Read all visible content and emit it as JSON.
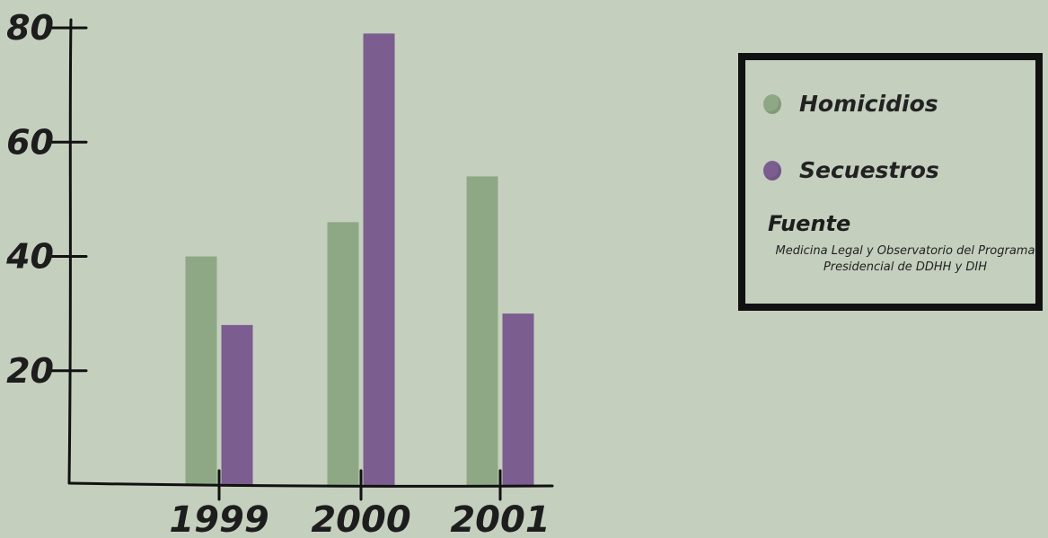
{
  "chart_data": {
    "type": "bar",
    "categories": [
      "1999",
      "2000",
      "2001"
    ],
    "series": [
      {
        "name": "Homicidios",
        "color": "#8ea885",
        "values": [
          40,
          46,
          54
        ]
      },
      {
        "name": "Secuestros",
        "color": "#7b5d90",
        "values": [
          28,
          79,
          30
        ]
      }
    ],
    "yticks": [
      "20",
      "40",
      "60",
      "80"
    ],
    "ylim": [
      0,
      82
    ],
    "grid": false,
    "legend_position": "top-right"
  },
  "legend": {
    "items": [
      {
        "label": "Homicidios",
        "color": "#8ea885"
      },
      {
        "label": "Secuestros",
        "color": "#7b5d90"
      }
    ],
    "source_title": "Fuente",
    "source_line1": "Medicina Legal y Observatorio del Programa",
    "source_line2": "Presidencial de DDHH y DIH"
  }
}
